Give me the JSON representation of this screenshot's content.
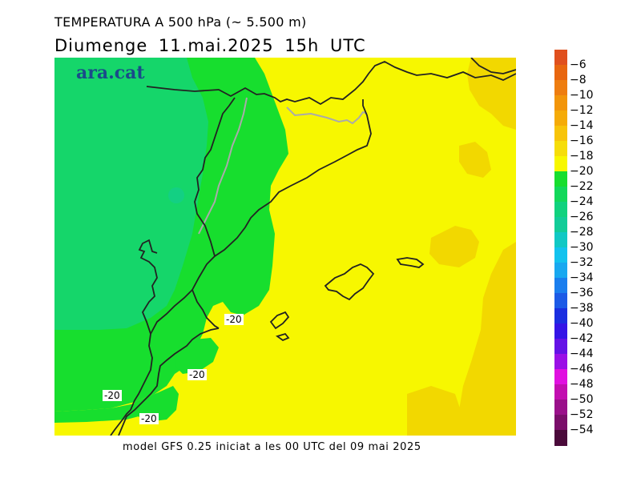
{
  "header": {
    "title": "TEMPERATURA A 500 hPa (~ 5.500 m)",
    "subtitle": "Diumenge  11.mai.2025  15h  UTC"
  },
  "map": {
    "logo_text": "ara.cat",
    "contour_label": "-20",
    "colors": {
      "warm_yellow": "#f7f700",
      "orange_yellow": "#f2d800",
      "green": "#17de2e",
      "dark_green": "#15d66a",
      "coast": "#222222",
      "border": "#aaaaaa"
    }
  },
  "footer": {
    "text": "model GFS 0.25 iniciat a les 00 UTC del 09 mai 2025"
  },
  "legend": {
    "labels": [
      "-6",
      "-8",
      "-10",
      "-12",
      "-14",
      "-16",
      "-18",
      "-20",
      "-22",
      "-24",
      "-26",
      "-28",
      "-30",
      "-32",
      "-34",
      "-36",
      "-38",
      "-40",
      "-42",
      "-44",
      "-46",
      "-48",
      "-50",
      "-52",
      "-54"
    ],
    "colors": [
      "#e0501e",
      "#e8660f",
      "#ee7d10",
      "#f2950a",
      "#f5ab08",
      "#f7c40a",
      "#f6dd0a",
      "#f7f700",
      "#17de2e",
      "#12d85a",
      "#10d27e",
      "#12cc98",
      "#10c8c4",
      "#12c2ee",
      "#18a8f0",
      "#1a7eee",
      "#1c5ae6",
      "#1a2ee0",
      "#3414e6",
      "#6412e6",
      "#9a10e6",
      "#e010e0",
      "#c20eb0",
      "#9a108a",
      "#7a0e6a",
      "#4a0a3a"
    ]
  }
}
